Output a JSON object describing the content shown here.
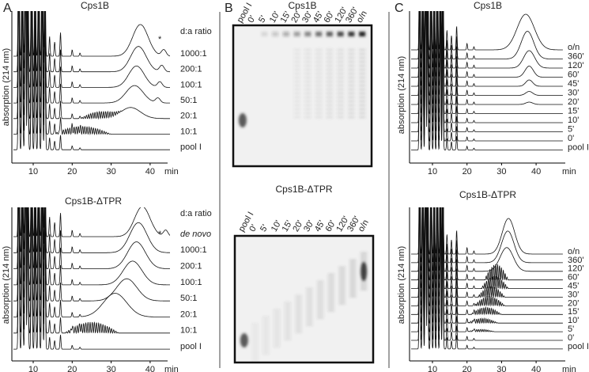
{
  "panels": [
    {
      "letter": "A",
      "plots": [
        {
          "title": "Cps1B",
          "y_label": "absorption (214 nm)",
          "legend_title": "d:a ratio",
          "annotation": "*",
          "trace_labels": [
            "1000:1",
            "200:1",
            "100:1",
            "50:1",
            "20:1",
            "10:1",
            "pool I"
          ],
          "x_ticks": [
            10,
            20,
            30,
            40
          ],
          "x_unit": "min"
        },
        {
          "title": "Cps1B-ΔTPR",
          "y_label": "absorption (214 nm)",
          "legend_title": "d:a ratio",
          "annotation": "*",
          "trace_labels": [
            "de novo",
            "1000:1",
            "200:1",
            "100:1",
            "50:1",
            "20:1",
            "10:1",
            "pool I"
          ],
          "x_ticks": [
            10,
            20,
            30,
            40
          ],
          "x_unit": "min"
        }
      ]
    },
    {
      "letter": "B",
      "gels": [
        {
          "title": "Cps1B",
          "lane_labels": [
            "pool I",
            "0'",
            "5'",
            "10'",
            "15'",
            "20'",
            "30'",
            "45'",
            "60'",
            "120'",
            "360'",
            "o/n"
          ]
        },
        {
          "title": "Cps1B-ΔTPR",
          "lane_labels": [
            "pool I",
            "0'",
            "5'",
            "10'",
            "15'",
            "20'",
            "30'",
            "45'",
            "60'",
            "120'",
            "360'",
            "o/n"
          ]
        }
      ]
    },
    {
      "letter": "C",
      "plots": [
        {
          "title": "Cps1B",
          "y_label": "absorption (214 nm)",
          "trace_labels": [
            "o/n",
            "360'",
            "120'",
            "60'",
            "45'",
            "30'",
            "20'",
            "15'",
            "10'",
            "5'",
            "0'",
            "pool I"
          ],
          "x_ticks": [
            10,
            20,
            30,
            40
          ],
          "x_unit": "min"
        },
        {
          "title": "Cps1B-ΔTPR",
          "y_label": "absorption (214 nm)",
          "trace_labels": [
            "o/n",
            "360'",
            "120'",
            "60'",
            "45'",
            "30'",
            "20'",
            "15'",
            "10'",
            "5'",
            "0'",
            "pool I"
          ],
          "x_ticks": [
            10,
            20,
            30,
            40
          ],
          "x_unit": "min"
        }
      ]
    }
  ]
}
